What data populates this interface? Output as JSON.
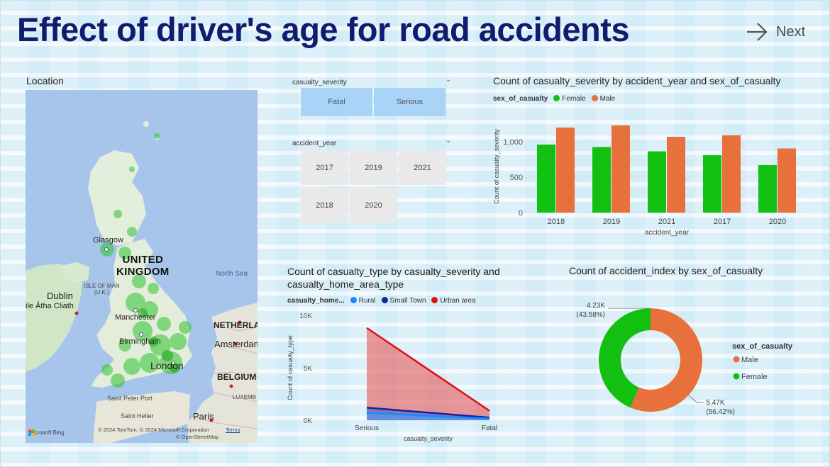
{
  "page": {
    "title": "Effect of driver's age for road accidents",
    "next_label": "Next"
  },
  "map": {
    "label": "Location",
    "labels": {
      "glasgow": "Glasgow",
      "uk_line1": "UNITED",
      "uk_line2": "KINGDOM",
      "north_sea": "North Sea",
      "isle_of_man_1": "ISLE OF MAN",
      "isle_of_man_2": "(U.K.)",
      "dublin": "Dublin",
      "baile": "ile Átha Cliath",
      "manchester": "Manchester",
      "birmingham": "Birmingham",
      "london": "London",
      "netherlands": "NETHERLAN",
      "amsterdam": "Amsterdam",
      "belgium": "BELGIUM",
      "luxembourg": "LUXEMB",
      "saint_peter_port": "Saint Peter Port",
      "saint_helier": "Saint Helier",
      "paris": "Paris",
      "bing": "Microsoft Bing",
      "copyright": "© 2024 TomTom, © 2024 Microsoft Corporation",
      "terms": "Terms",
      "osm": "© OpenStreetMap"
    }
  },
  "slicers": {
    "severity": {
      "header": "casualty_severity",
      "options": [
        "Fatal",
        "Serious"
      ]
    },
    "year": {
      "header": "accident_year",
      "options": [
        "2017",
        "2019",
        "2021",
        "2018",
        "2020"
      ]
    }
  },
  "chart_data": [
    {
      "type": "bar",
      "title": "Count of casualty_severity by accident_year and sex_of_casualty",
      "legend_title": "sex_of_casualty",
      "xlabel": "accident_year",
      "ylabel": "Count of casualty_severity",
      "categories": [
        "2018",
        "2019",
        "2021",
        "2017",
        "2020"
      ],
      "series": [
        {
          "name": "Female",
          "color": "#11c011",
          "values": [
            960,
            925,
            865,
            810,
            670
          ]
        },
        {
          "name": "Male",
          "color": "#e8703a",
          "values": [
            1200,
            1230,
            1070,
            1090,
            905
          ]
        }
      ],
      "ylim": [
        0,
        1300
      ],
      "yticks": [
        0,
        500,
        1000
      ],
      "ytick_labels": [
        "0",
        "500",
        "1,000"
      ],
      "grid": true
    },
    {
      "type": "area",
      "title_line1": "Count of casualty_type by casualty_severity and",
      "title_line2": "casualty_home_area_type",
      "legend_title": "casualty_home...",
      "xlabel": "casualty_severity",
      "ylabel": "Count of casualty_type",
      "categories": [
        "Serious",
        "Fatal"
      ],
      "series": [
        {
          "name": "Rural",
          "color": "#118dff",
          "values": [
            700,
            150
          ]
        },
        {
          "name": "Small Town",
          "color": "#12239e",
          "values": [
            1200,
            250
          ]
        },
        {
          "name": "Urban area",
          "color": "#e01010",
          "values": [
            8800,
            900
          ]
        }
      ],
      "ylim": [
        0,
        10000
      ],
      "yticks": [
        0,
        5000,
        10000
      ],
      "ytick_labels": [
        "0K",
        "5K",
        "10K"
      ]
    },
    {
      "type": "pie",
      "title": "Count of accident_index by sex_of_casualty",
      "legend_title": "sex_of_casualty",
      "slices": [
        {
          "name": "Male",
          "color": "#e8703a",
          "value": 5470,
          "label": "5.47K",
          "pct_label": "(56.42%)"
        },
        {
          "name": "Female",
          "color": "#11c011",
          "value": 4230,
          "label": "4.23K",
          "pct_label": "(43.58%)"
        }
      ]
    }
  ]
}
